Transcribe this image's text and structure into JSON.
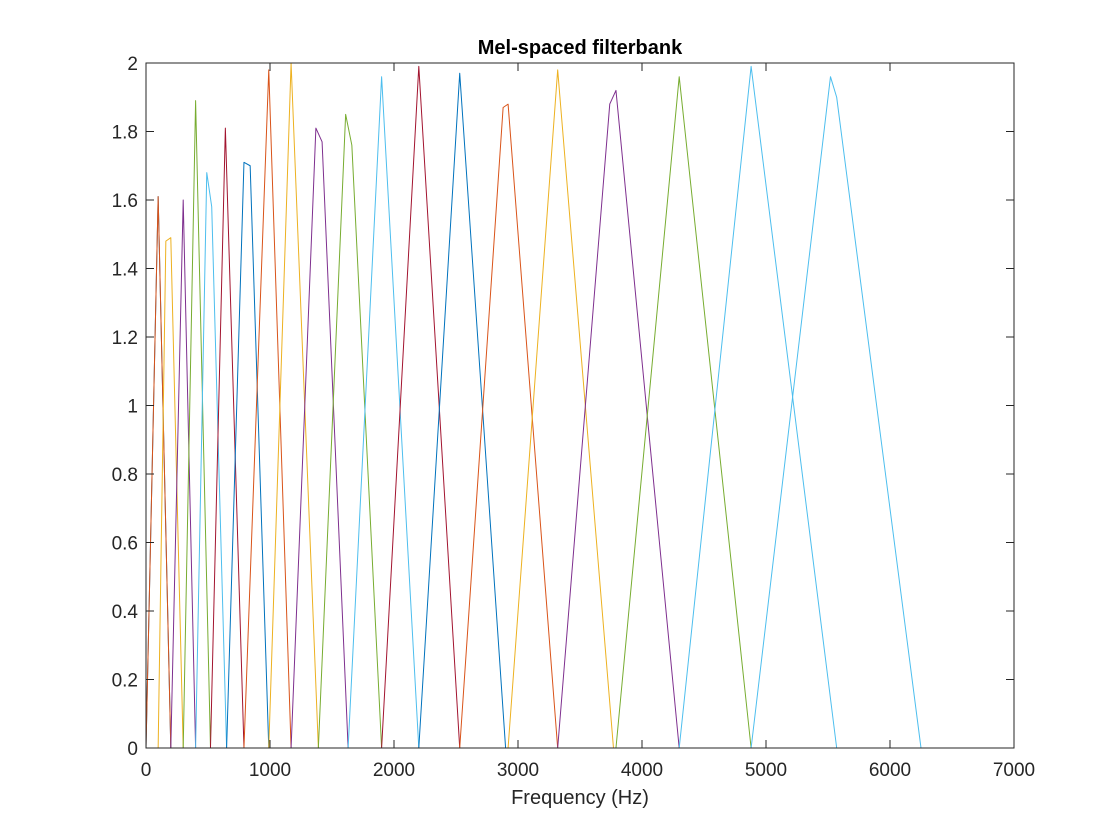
{
  "chart_data": {
    "type": "line",
    "title": "Mel-spaced filterbank",
    "xlabel": "Frequency (Hz)",
    "ylabel": "",
    "xlim": [
      0,
      7000
    ],
    "ylim": [
      0,
      2
    ],
    "grid": false,
    "legend": "none",
    "x_ticks": [
      "0",
      "1000",
      "2000",
      "3000",
      "4000",
      "5000",
      "6000",
      "7000"
    ],
    "y_ticks": [
      "0",
      "0.2",
      "0.4",
      "0.6",
      "0.8",
      "1",
      "1.2",
      "1.4",
      "1.6",
      "1.8",
      "2"
    ],
    "series": [
      {
        "color": "#0072BD",
        "x": [
          0,
          98,
          200
        ],
        "y": [
          0,
          1.61,
          0
        ]
      },
      {
        "color": "#D95319",
        "x": [
          0,
          98,
          200
        ],
        "y": [
          0,
          1.61,
          0
        ]
      },
      {
        "color": "#EDB120",
        "x": [
          98,
          160,
          200,
          300
        ],
        "y": [
          0,
          1.48,
          1.49,
          0
        ]
      },
      {
        "color": "#7E2F8E",
        "x": [
          200,
          300,
          400
        ],
        "y": [
          0,
          1.6,
          0
        ]
      },
      {
        "color": "#77AC30",
        "x": [
          300,
          400,
          520
        ],
        "y": [
          0,
          1.89,
          0
        ]
      },
      {
        "color": "#4DBEEE",
        "x": [
          400,
          490,
          530,
          650
        ],
        "y": [
          0,
          1.68,
          1.58,
          0
        ]
      },
      {
        "color": "#A2142F",
        "x": [
          520,
          640,
          790
        ],
        "y": [
          0,
          1.81,
          0
        ]
      },
      {
        "color": "#0072BD",
        "x": [
          650,
          790,
          840,
          990
        ],
        "y": [
          0,
          1.71,
          1.7,
          0
        ]
      },
      {
        "color": "#D95319",
        "x": [
          790,
          990,
          1170
        ],
        "y": [
          0,
          1.98,
          0
        ]
      },
      {
        "color": "#EDB120",
        "x": [
          990,
          1170,
          1390
        ],
        "y": [
          0,
          2.0,
          0
        ]
      },
      {
        "color": "#7E2F8E",
        "x": [
          1170,
          1370,
          1420,
          1630
        ],
        "y": [
          0,
          1.81,
          1.77,
          0
        ]
      },
      {
        "color": "#77AC30",
        "x": [
          1390,
          1610,
          1660,
          1900
        ],
        "y": [
          0,
          1.85,
          1.76,
          0
        ]
      },
      {
        "color": "#4DBEEE",
        "x": [
          1630,
          1900,
          2200
        ],
        "y": [
          0,
          1.96,
          0
        ]
      },
      {
        "color": "#A2142F",
        "x": [
          1900,
          2200,
          2530
        ],
        "y": [
          0,
          1.99,
          0
        ]
      },
      {
        "color": "#0072BD",
        "x": [
          2200,
          2530,
          2900
        ],
        "y": [
          0,
          1.97,
          0
        ]
      },
      {
        "color": "#D95319",
        "x": [
          2530,
          2880,
          2920,
          3320
        ],
        "y": [
          0,
          1.87,
          1.88,
          0
        ]
      },
      {
        "color": "#EDB120",
        "x": [
          2920,
          3320,
          3770
        ],
        "y": [
          0,
          1.98,
          0
        ]
      },
      {
        "color": "#7E2F8E",
        "x": [
          3320,
          3740,
          3790,
          4300
        ],
        "y": [
          0,
          1.88,
          1.92,
          0
        ]
      },
      {
        "color": "#77AC30",
        "x": [
          3790,
          4300,
          4880
        ],
        "y": [
          0,
          1.96,
          0
        ]
      },
      {
        "color": "#4DBEEE",
        "x": [
          4300,
          4880,
          5570
        ],
        "y": [
          0,
          1.99,
          0
        ]
      },
      {
        "color": "#4DBEEE",
        "x": [
          4880,
          5520,
          5570,
          6250
        ],
        "y": [
          0,
          1.96,
          1.9,
          0
        ]
      }
    ]
  }
}
